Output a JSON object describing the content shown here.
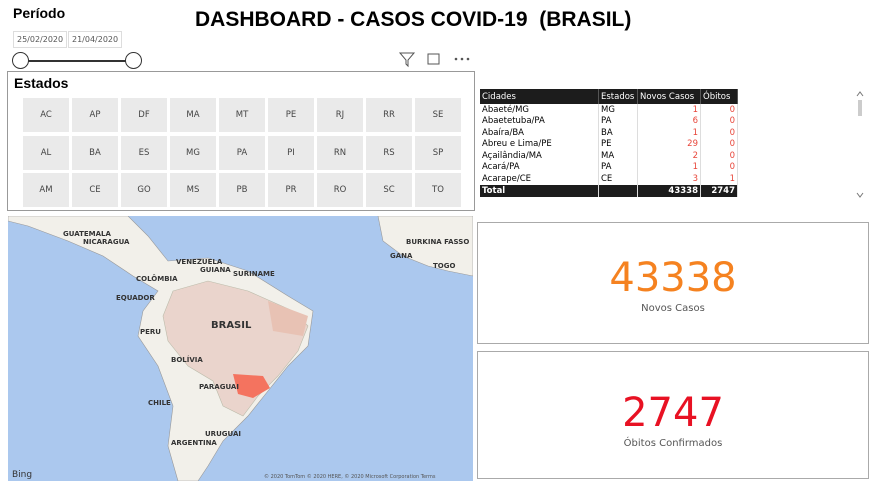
{
  "title": "DASHBOARD - CASOS COVID-19  (BRASIL)",
  "periodo": {
    "label": "Período",
    "start": "25/02/2020",
    "end": "21/04/2020"
  },
  "estados": {
    "title": "Estados",
    "buttons": [
      "AC",
      "AP",
      "DF",
      "MA",
      "MT",
      "PE",
      "RJ",
      "RR",
      "SE",
      "AL",
      "BA",
      "ES",
      "MG",
      "PA",
      "PI",
      "RN",
      "RS",
      "SP",
      "AM",
      "CE",
      "GO",
      "MS",
      "PB",
      "PR",
      "RO",
      "SC",
      "TO"
    ]
  },
  "table": {
    "headers": [
      "Cidades",
      "Estados",
      "Novos Casos",
      "Óbitos"
    ],
    "rows": [
      [
        "Abaeté/MG",
        "MG",
        1,
        0
      ],
      [
        "Abaetetuba/PA",
        "PA",
        6,
        0
      ],
      [
        "Abaíra/BA",
        "BA",
        1,
        0
      ],
      [
        "Abreu e Lima/PE",
        "PE",
        29,
        0
      ],
      [
        "Açailândia/MA",
        "MA",
        2,
        0
      ],
      [
        "Acará/PA",
        "PA",
        1,
        0
      ],
      [
        "Acarape/CE",
        "CE",
        3,
        1
      ]
    ],
    "total": {
      "label": "Total",
      "novos_casos": 43338,
      "obitos": 2747
    }
  },
  "map": {
    "labels": [
      "GUATEMALA",
      "NICARAGUA",
      "COLÔMBIA",
      "VENEZUELA",
      "GUIANA",
      "SURINAME",
      "EQUADOR",
      "PERU",
      "BRASIL",
      "BOLÍVIA",
      "PARAGUAI",
      "CHILE",
      "URUGUAI",
      "ARGENTINA",
      "BURKINA FASSO",
      "GANA",
      "TOGO"
    ],
    "logo": "Bing",
    "attribution": "© 2020 TomTom © 2020 HERE, © 2020 Microsoft Corporation Terms"
  },
  "cards": [
    {
      "value": 43338,
      "label": "Novos Casos"
    },
    {
      "value": 2747,
      "label": "Óbitos Confirmados"
    }
  ]
}
